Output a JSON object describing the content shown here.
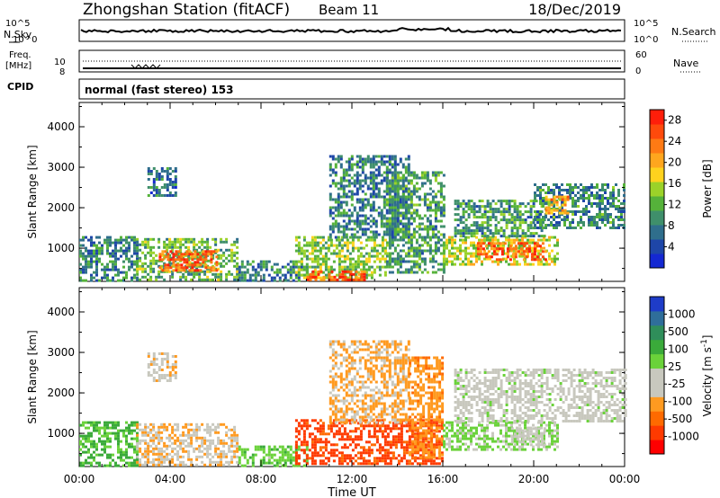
{
  "header": {
    "station": "Zhongshan Station (fitACF)",
    "beam": "Beam 11",
    "date": "18/Dec/2019"
  },
  "top_panels": {
    "nsky_label": "N.Sky",
    "nsearch_label": "N.Search",
    "noise_ticks_left": [
      "10^5",
      "10^0"
    ],
    "noise_ticks_right": [
      "10^5",
      "10^0"
    ],
    "freq_label_1": "Freq.",
    "freq_label_2": "[MHz]",
    "freq_ticks_left": [
      "10",
      "8"
    ],
    "nave_label": "Nave",
    "nave_ticks_right": [
      "60",
      "0"
    ],
    "cpid_label": "CPID",
    "cpid_text": "normal (fast stereo) 153"
  },
  "colorbars": {
    "power_title": "Power [dB]",
    "power_colors": [
      "#1428d2",
      "#1e46a8",
      "#2f6e8c",
      "#3f8f6b",
      "#55b23a",
      "#9bd229",
      "#ffd21e",
      "#ffa61e",
      "#ff7a14",
      "#ff4a0c",
      "#ff1e0a"
    ],
    "power_ticks": [
      "4",
      "8",
      "12",
      "16",
      "20",
      "24",
      "28"
    ],
    "velocity_title": "Velocity [m s",
    "velocity_title_sup": "-1",
    "velocity_title_end": "]",
    "velocity_colors": [
      "#ff0000",
      "#ff3a00",
      "#ff6a00",
      "#ff9a20",
      "#c8c8be",
      "#c8c8be",
      "#6ad23a",
      "#3aaa3a",
      "#2f8e5a",
      "#2f6e9a",
      "#1e3cc8"
    ],
    "velocity_ticks": [
      "1000",
      "500",
      "100",
      "25",
      "-25",
      "-100",
      "-500",
      "-1000"
    ]
  },
  "chart_data": [
    {
      "type": "heatmap",
      "title": "Power [dB]",
      "xlabel": "Time UT",
      "ylabel": "Slant Range [km]",
      "xticks": [
        "00:00",
        "04:00",
        "08:00",
        "12:00",
        "16:00",
        "20:00",
        "00:00"
      ],
      "yticks": [
        "1000",
        "2000",
        "3000",
        "4000"
      ],
      "xlim_hours": [
        0,
        24
      ],
      "ylim_km": [
        180,
        4600
      ],
      "clim_db": [
        0,
        30
      ],
      "regions": [
        {
          "t": [
            0,
            2.5
          ],
          "r": [
            200,
            1300
          ],
          "db": 8
        },
        {
          "t": [
            2.5,
            7.0
          ],
          "r": [
            200,
            1250
          ],
          "db": 12
        },
        {
          "t": [
            3.5,
            6.0
          ],
          "r": [
            450,
            950
          ],
          "db": 24
        },
        {
          "t": [
            7.0,
            10.0
          ],
          "r": [
            200,
            700
          ],
          "db": 8
        },
        {
          "t": [
            9.5,
            13.5
          ],
          "r": [
            250,
            1300
          ],
          "db": 14
        },
        {
          "t": [
            10.0,
            12.5
          ],
          "r": [
            250,
            450
          ],
          "db": 26
        },
        {
          "t": [
            11.0,
            14.5
          ],
          "r": [
            1300,
            3300
          ],
          "db": 8
        },
        {
          "t": [
            13.5,
            16.0
          ],
          "r": [
            400,
            2900
          ],
          "db": 10
        },
        {
          "t": [
            16.0,
            21.0
          ],
          "r": [
            600,
            1300
          ],
          "db": 16
        },
        {
          "t": [
            17.5,
            20.5
          ],
          "r": [
            700,
            1150
          ],
          "db": 25
        },
        {
          "t": [
            16.5,
            20.5
          ],
          "r": [
            1300,
            2200
          ],
          "db": 10
        },
        {
          "t": [
            20.0,
            24.0
          ],
          "r": [
            1500,
            2600
          ],
          "db": 9
        },
        {
          "t": [
            20.5,
            21.5
          ],
          "r": [
            1900,
            2300
          ],
          "db": 20
        },
        {
          "t": [
            3.0,
            4.2
          ],
          "r": [
            2300,
            3000
          ],
          "db": 7
        }
      ]
    },
    {
      "type": "heatmap",
      "title": "Velocity [m s-1]",
      "xlabel": "Time UT",
      "ylabel": "Slant Range [km]",
      "xticks": [
        "00:00",
        "04:00",
        "08:00",
        "12:00",
        "16:00",
        "20:00",
        "00:00"
      ],
      "yticks": [
        "1000",
        "2000",
        "3000",
        "4000"
      ],
      "xlim_hours": [
        0,
        24
      ],
      "ylim_km": [
        180,
        4600
      ],
      "clim_ms": [
        -1000,
        1000
      ],
      "regions": [
        {
          "t": [
            0,
            2.5
          ],
          "r": [
            200,
            1300
          ],
          "v": 300
        },
        {
          "t": [
            2.5,
            7.0
          ],
          "r": [
            200,
            1250
          ],
          "v": -250
        },
        {
          "t": [
            7.0,
            10.0
          ],
          "r": [
            200,
            700
          ],
          "v": 200
        },
        {
          "t": [
            9.5,
            16.0
          ],
          "r": [
            250,
            1350
          ],
          "v": -700
        },
        {
          "t": [
            11.0,
            14.5
          ],
          "r": [
            1300,
            3300
          ],
          "v": -300
        },
        {
          "t": [
            14.5,
            16.0
          ],
          "r": [
            400,
            2900
          ],
          "v": -400
        },
        {
          "t": [
            16.0,
            21.0
          ],
          "r": [
            600,
            1300
          ],
          "v": 120
        },
        {
          "t": [
            19.0,
            20.5
          ],
          "r": [
            700,
            1150
          ],
          "v": -150
        },
        {
          "t": [
            16.5,
            24.0
          ],
          "r": [
            1300,
            2600
          ],
          "v": 0
        },
        {
          "t": [
            3.0,
            4.2
          ],
          "r": [
            2300,
            3000
          ],
          "v": -200
        }
      ]
    }
  ]
}
